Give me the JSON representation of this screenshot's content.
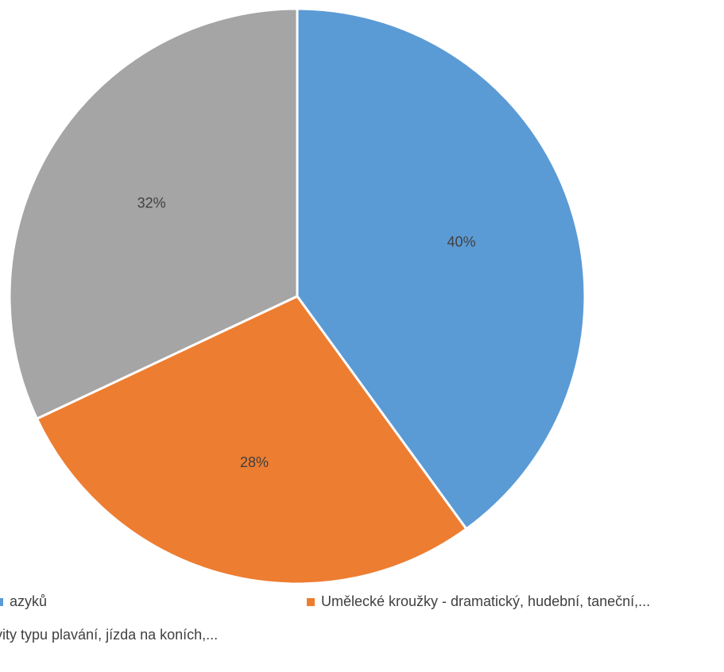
{
  "chart_data": {
    "type": "pie",
    "slices": [
      {
        "name": "azyků",
        "value": 40,
        "label": "40%",
        "color": "#5B9BD5"
      },
      {
        "name": "Umělecké kroužky - dramatický, hudební, taneční,...",
        "value": 28,
        "label": "28%",
        "color": "#ED7D31"
      },
      {
        "name": "ivity typu plavání, jízda na koních,...",
        "value": 32,
        "label": "32%",
        "color": "#A5A5A5"
      }
    ],
    "start_angle_deg": 0,
    "direction": "clockwise",
    "legend_position": "bottom"
  }
}
